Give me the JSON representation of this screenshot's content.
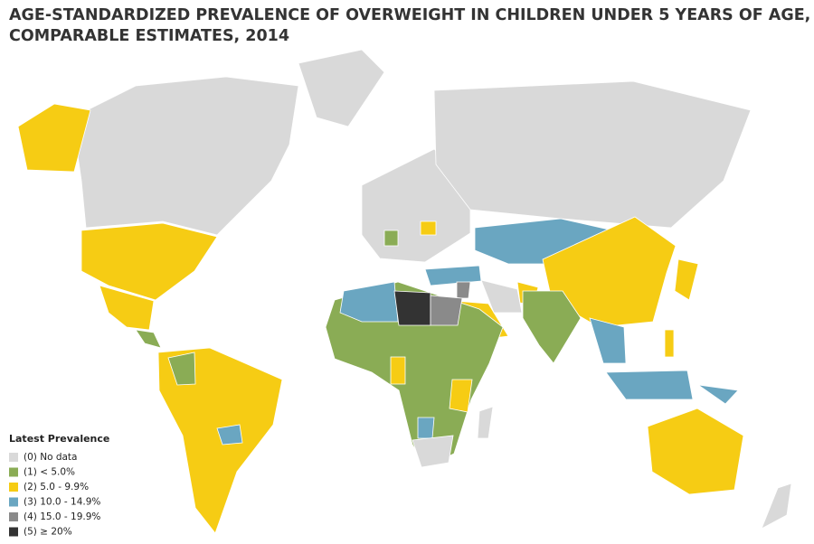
{
  "title": [
    "AGE-STANDARDIZED PREVALENCE OF OVERWEIGHT IN CHILDREN UNDER 5 YEARS OF AGE,",
    "COMPARABLE ESTIMATES, 2014"
  ],
  "legend": {
    "title": "Latest Prevalence",
    "items": [
      {
        "label": "(0) No data",
        "color": "#d9d9d9"
      },
      {
        "label": "(1) < 5.0%",
        "color": "#8aac55"
      },
      {
        "label": "(2) 5.0 - 9.9%",
        "color": "#f6cc14"
      },
      {
        "label": "(3) 10.0 - 14.9%",
        "color": "#6aa6c1"
      },
      {
        "label": "(4) 15.0 - 19.9%",
        "color": "#8a8a8a"
      },
      {
        "label": "(5) ≥ 20%",
        "color": "#333333"
      }
    ]
  }
}
